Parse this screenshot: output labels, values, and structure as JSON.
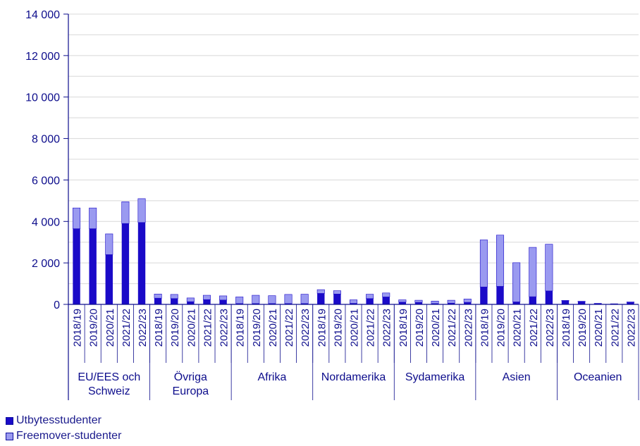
{
  "chart_data": {
    "type": "bar",
    "stacked": true,
    "ylim": [
      0,
      14000
    ],
    "yticks": [
      0,
      2000,
      4000,
      6000,
      8000,
      10000,
      12000,
      14000
    ],
    "ytick_labels": [
      "0",
      "2 000",
      "4 000",
      "6 000",
      "8 000",
      "10 000",
      "12 000",
      "14 000"
    ],
    "minor_grid_step": 1000,
    "grid": true,
    "legend_position": "bottom-left",
    "colors": {
      "utbyte": "#1a0ac8",
      "freemover": "#9a9af0",
      "axis": "#0d0d8c",
      "grid": "#d8d8d8"
    },
    "groups": [
      {
        "label_lines": [
          "EU/EES och",
          "Schweiz"
        ],
        "years": [
          "2018/19",
          "2019/20",
          "2020/21",
          "2021/22",
          "2022/23"
        ]
      },
      {
        "label_lines": [
          "Övriga",
          "Europa"
        ],
        "years": [
          "2018/19",
          "2019/20",
          "2020/21",
          "2021/22",
          "2022/23"
        ]
      },
      {
        "label_lines": [
          "Afrika"
        ],
        "years": [
          "2018/19",
          "2019/20",
          "2020/21",
          "2021/22",
          "2022/23"
        ]
      },
      {
        "label_lines": [
          "Nordamerika"
        ],
        "years": [
          "2018/19",
          "2019/20",
          "2020/21",
          "2021/22",
          "2022/23"
        ]
      },
      {
        "label_lines": [
          "Sydamerika"
        ],
        "years": [
          "2018/19",
          "2019/20",
          "2020/21",
          "2021/22",
          "2022/23"
        ]
      },
      {
        "label_lines": [
          "Asien"
        ],
        "years": [
          "2018/19",
          "2019/20",
          "2020/21",
          "2021/22",
          "2022/23"
        ]
      },
      {
        "label_lines": [
          "Oceanien"
        ],
        "years": [
          "2018/19",
          "2019/20",
          "2020/21",
          "2021/22",
          "2022/23"
        ]
      }
    ],
    "series": [
      {
        "name": "Utbytesstudenter",
        "key": "utbyte",
        "values": [
          [
            3650,
            3650,
            2400,
            3900,
            3950
          ],
          [
            300,
            280,
            130,
            230,
            210
          ],
          [
            40,
            40,
            40,
            40,
            40
          ],
          [
            530,
            500,
            50,
            280,
            360
          ],
          [
            110,
            100,
            40,
            60,
            100
          ],
          [
            840,
            870,
            120,
            370,
            650
          ],
          [
            170,
            130,
            40,
            20,
            90
          ]
        ]
      },
      {
        "name": "Freemover-studenter",
        "key": "freemover",
        "values": [
          [
            1000,
            1000,
            1000,
            1050,
            1150
          ],
          [
            200,
            200,
            180,
            210,
            200
          ],
          [
            320,
            400,
            380,
            440,
            450
          ],
          [
            180,
            160,
            170,
            210,
            190
          ],
          [
            110,
            100,
            120,
            140,
            160
          ],
          [
            2270,
            2470,
            1890,
            2380,
            2250
          ],
          [
            20,
            20,
            10,
            10,
            30
          ]
        ]
      }
    ]
  }
}
